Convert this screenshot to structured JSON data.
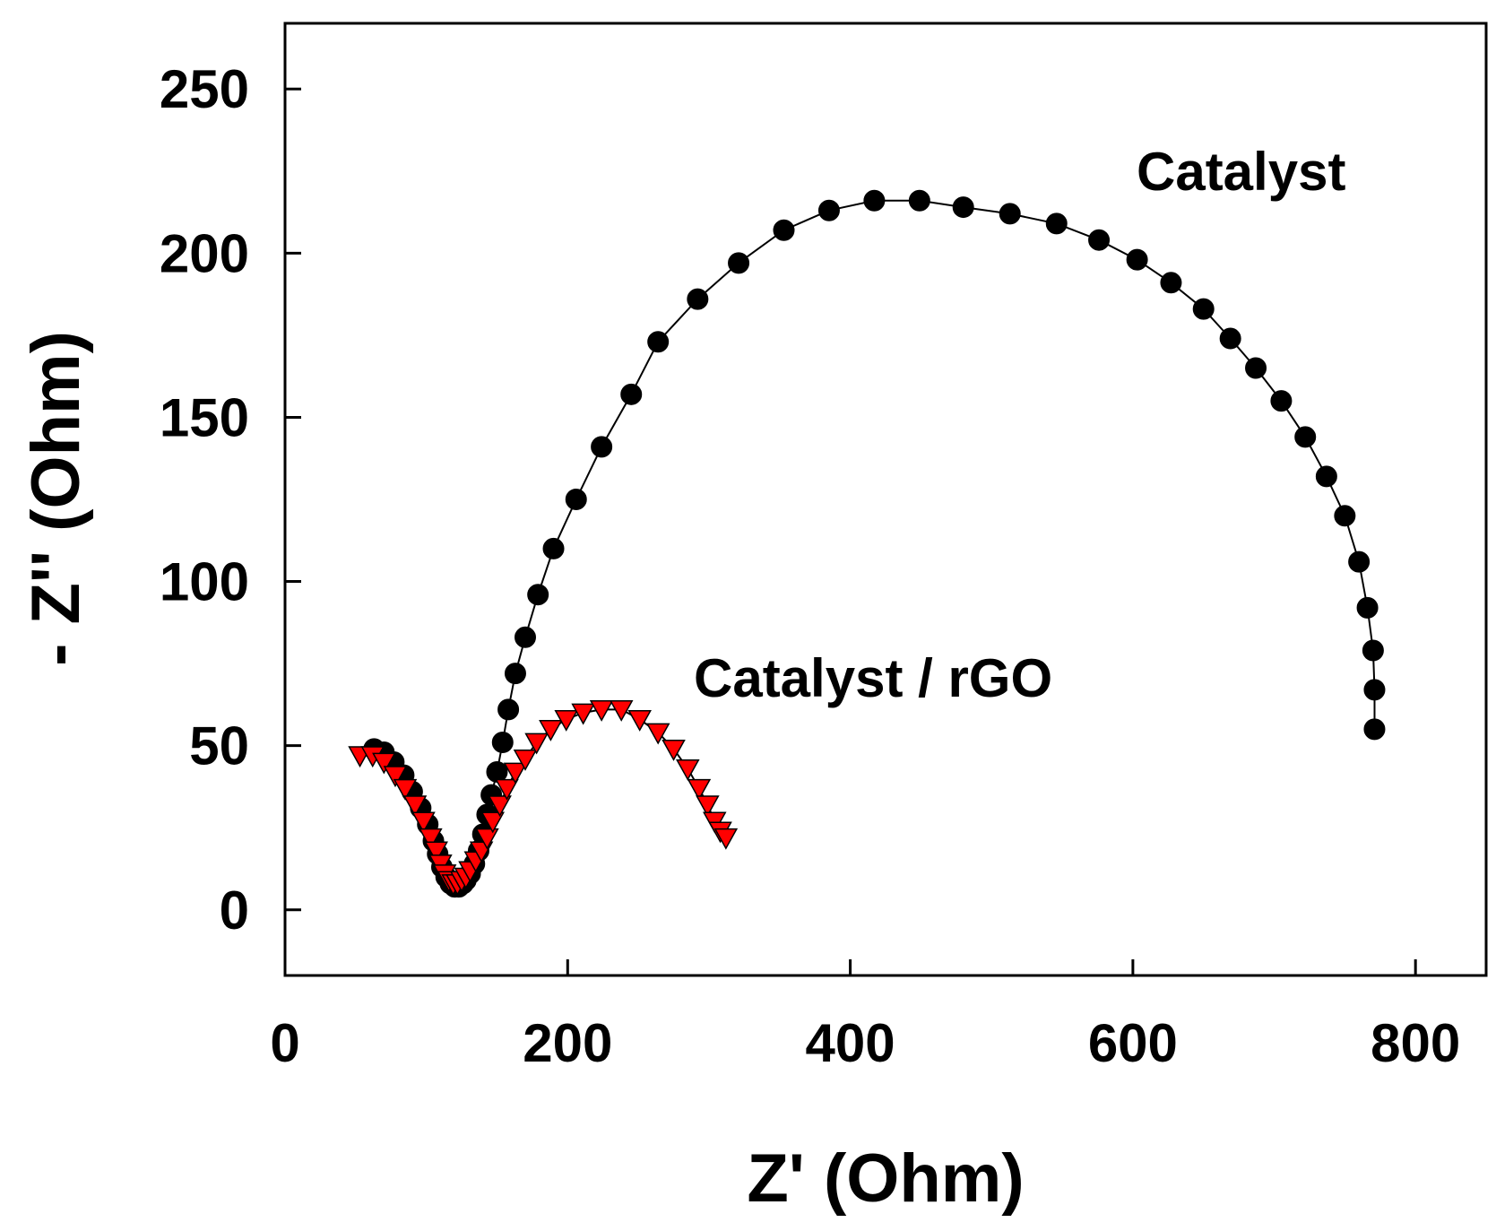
{
  "chart_data": {
    "type": "scatter",
    "title": "",
    "xlabel": "Z' (Ohm)",
    "ylabel": "- Z'' (Ohm)",
    "xlim": [
      0,
      850
    ],
    "ylim": [
      -20,
      270
    ],
    "xticks": [
      0,
      200,
      400,
      600,
      800
    ],
    "yticks": [
      0,
      50,
      100,
      150,
      200,
      250
    ],
    "grid": false,
    "series": [
      {
        "name": "Catalyst",
        "marker": "circle",
        "color": "#000000",
        "line": true,
        "x": [
          63,
          70,
          77,
          84,
          90,
          96,
          101,
          105,
          108,
          111,
          114,
          117,
          120,
          123,
          126,
          128,
          131,
          134,
          137,
          140,
          143,
          146,
          150,
          154,
          158,
          163,
          170,
          179,
          190,
          206,
          224,
          245,
          264,
          292,
          321,
          353,
          385,
          417,
          449,
          480,
          513,
          546,
          576,
          603,
          627,
          650,
          669,
          687,
          705,
          722,
          737,
          750,
          760,
          766,
          770,
          771,
          771
        ],
        "y": [
          49,
          48,
          45,
          41,
          36,
          31,
          26,
          21,
          17,
          13,
          10,
          8,
          7,
          7,
          8,
          9,
          11,
          14,
          18,
          23,
          29,
          35,
          42,
          51,
          61,
          72,
          83,
          96,
          110,
          125,
          141,
          157,
          173,
          186,
          197,
          207,
          213,
          216,
          216,
          214,
          212,
          209,
          204,
          198,
          191,
          183,
          174,
          165,
          155,
          144,
          132,
          120,
          106,
          92,
          79,
          67,
          55
        ]
      },
      {
        "name": "Catalyst / rGO",
        "marker": "triangle-down",
        "color": "#ff0000",
        "line": true,
        "x": [
          53,
          62,
          70,
          78,
          85,
          92,
          98,
          103,
          107,
          110,
          113,
          116,
          119,
          122,
          125,
          128,
          131,
          135,
          139,
          143,
          147,
          152,
          157,
          163,
          170,
          178,
          188,
          199,
          211,
          224,
          238,
          251,
          264,
          275,
          285,
          293,
          299,
          304,
          308,
          312
        ],
        "y": [
          47,
          47,
          45,
          41,
          37,
          32,
          27,
          22,
          18,
          14,
          11,
          9,
          8,
          8,
          9,
          10,
          12,
          15,
          18,
          22,
          27,
          32,
          37,
          42,
          46,
          51,
          55,
          58,
          60,
          61,
          61,
          58,
          54,
          49,
          43,
          37,
          32,
          27,
          24,
          22
        ]
      }
    ],
    "annotations": [
      {
        "text": "Catalyst",
        "series": "Catalyst"
      },
      {
        "text": "Catalyst / rGO",
        "series": "Catalyst / rGO"
      }
    ]
  }
}
